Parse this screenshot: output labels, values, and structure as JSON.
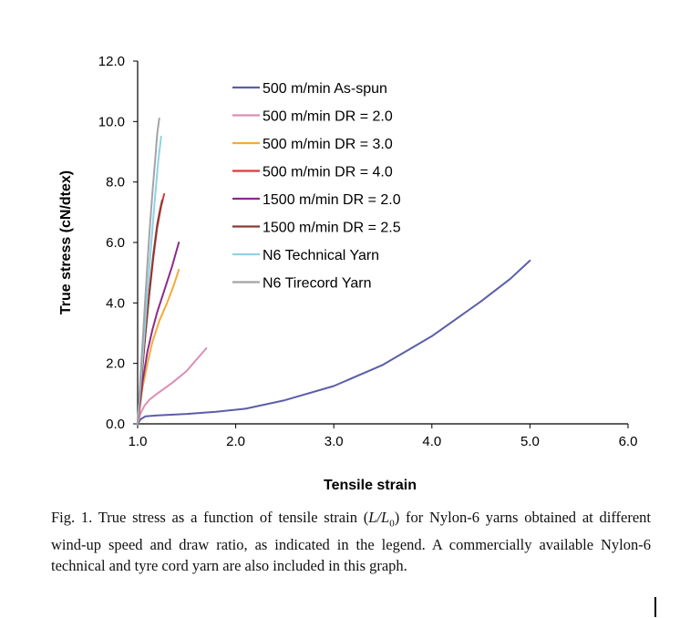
{
  "chart_data": {
    "type": "line",
    "title": "",
    "xlabel": "Tensile strain",
    "ylabel": "True stress (cN/dtex)",
    "xlim": [
      1.0,
      6.0
    ],
    "ylim": [
      0.0,
      12.0
    ],
    "xticks": [
      1.0,
      2.0,
      3.0,
      4.0,
      5.0,
      6.0
    ],
    "yticks": [
      0.0,
      2.0,
      4.0,
      6.0,
      8.0,
      10.0,
      12.0
    ],
    "xtick_labels": [
      "1.0",
      "2.0",
      "3.0",
      "4.0",
      "5.0",
      "6.0"
    ],
    "ytick_labels": [
      "0.0",
      "2.0",
      "4.0",
      "6.0",
      "8.0",
      "10.0",
      "12.0"
    ],
    "legend_position": "top-center",
    "grid": false,
    "series": [
      {
        "name": "500 m/min As-spun",
        "color": "#5b5ea8",
        "x": [
          1.0,
          1.03,
          1.08,
          1.2,
          1.5,
          1.8,
          2.1,
          2.5,
          3.0,
          3.5,
          4.0,
          4.5,
          4.8,
          4.95,
          5.0
        ],
        "y": [
          0.0,
          0.15,
          0.25,
          0.28,
          0.33,
          0.4,
          0.5,
          0.78,
          1.25,
          1.95,
          2.9,
          4.05,
          4.8,
          5.25,
          5.4
        ]
      },
      {
        "name": "500 m/min DR = 2.0",
        "color": "#dd8db4",
        "x": [
          1.0,
          1.03,
          1.07,
          1.12,
          1.2,
          1.35,
          1.5,
          1.62,
          1.7
        ],
        "y": [
          0.0,
          0.35,
          0.6,
          0.8,
          1.0,
          1.35,
          1.75,
          2.2,
          2.5
        ]
      },
      {
        "name": "500 m/min DR = 3.0",
        "color": "#f5aa38",
        "x": [
          1.0,
          1.05,
          1.1,
          1.15,
          1.22,
          1.3,
          1.37,
          1.42
        ],
        "y": [
          0.0,
          1.2,
          2.0,
          2.7,
          3.4,
          4.0,
          4.6,
          5.1
        ]
      },
      {
        "name": "500 m/min DR = 4.0",
        "color": "#d83a3a",
        "x": [
          1.0,
          1.04,
          1.08,
          1.12,
          1.16,
          1.2,
          1.24,
          1.27
        ],
        "y": [
          0.0,
          1.6,
          3.0,
          4.3,
          5.5,
          6.5,
          7.2,
          7.6
        ]
      },
      {
        "name": "1500 m/min DR = 2.0",
        "color": "#8c2a8c",
        "x": [
          1.0,
          1.05,
          1.1,
          1.15,
          1.2,
          1.27,
          1.35,
          1.42
        ],
        "y": [
          0.0,
          1.4,
          2.4,
          3.1,
          3.7,
          4.4,
          5.2,
          6.0
        ]
      },
      {
        "name": "1500 m/min DR = 2.5",
        "color": "#8a3a32",
        "x": [
          1.0,
          1.04,
          1.08,
          1.12,
          1.16,
          1.2,
          1.23,
          1.25
        ],
        "y": [
          0.0,
          1.5,
          3.0,
          4.4,
          5.6,
          6.6,
          7.1,
          7.4
        ]
      },
      {
        "name": "N6 Technical Yarn",
        "color": "#8fd2e6",
        "x": [
          1.0,
          1.03,
          1.06,
          1.09,
          1.12,
          1.15,
          1.18,
          1.21,
          1.24
        ],
        "y": [
          0.0,
          1.3,
          2.6,
          3.9,
          5.2,
          6.4,
          7.6,
          8.7,
          9.5
        ]
      },
      {
        "name": "N6 Tirecord Yarn",
        "color": "#a4a4a4",
        "x": [
          1.0,
          1.03,
          1.06,
          1.09,
          1.12,
          1.15,
          1.18,
          1.2,
          1.22
        ],
        "y": [
          0.0,
          1.6,
          3.2,
          4.8,
          6.3,
          7.6,
          8.8,
          9.6,
          10.1
        ]
      }
    ]
  },
  "caption": {
    "fig_label": "Fig. 1.",
    "text_before": "True stress as a function of tensile strain (",
    "formula_L": "L",
    "formula_sep": "/",
    "formula_L0": "L",
    "formula_sub": "0",
    "text_after": ") for Nylon-6 yarns obtained at different wind-up speed and draw ratio, as indicated in the legend. A commercially available Nylon-6 technical and tyre cord yarn are also included in this graph."
  }
}
